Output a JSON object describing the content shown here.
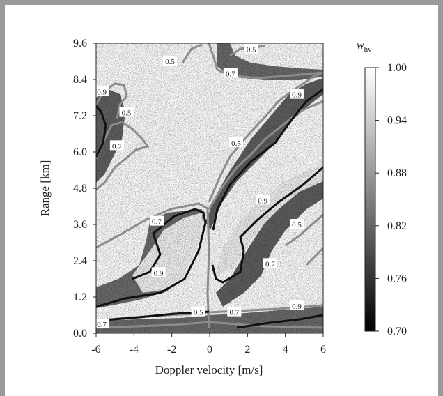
{
  "chart_data": {
    "type": "heatmap",
    "xlabel": "Doppler velocity [m/s]",
    "ylabel": "Range  [km]",
    "xlim": [
      -6,
      6
    ],
    "ylim": [
      0,
      9.6
    ],
    "x_ticks": [
      "-6",
      "-4",
      "-2",
      "0",
      "2",
      "4",
      "6"
    ],
    "y_ticks": [
      "0.0",
      "1.2",
      "2.4",
      "3.6",
      "4.8",
      "6.0",
      "7.2",
      "8.4",
      "9.6"
    ],
    "colorbar": {
      "label": "w",
      "label_subscript": "hv",
      "range": [
        0.7,
        1.0
      ],
      "ticks": [
        "1.00",
        "0.94",
        "0.88",
        "0.82",
        "0.76",
        "0.70"
      ],
      "colormap": "black-to-white"
    },
    "contours": [
      {
        "level": 0.5,
        "color": "#8c8c8c"
      },
      {
        "level": 0.7,
        "color": "#8c8c8c"
      },
      {
        "level": 0.9,
        "color": "#111111"
      }
    ],
    "contour_labels": [
      {
        "text": "0.5",
        "x": -2.1,
        "y": 9.0
      },
      {
        "text": "0.5",
        "x": 2.2,
        "y": 9.4
      },
      {
        "text": "0.7",
        "x": 1.1,
        "y": 8.6
      },
      {
        "text": "0.9",
        "x": -5.7,
        "y": 8.0
      },
      {
        "text": "0.5",
        "x": -4.4,
        "y": 7.3
      },
      {
        "text": "0.9",
        "x": 4.6,
        "y": 7.9
      },
      {
        "text": "0.7",
        "x": -4.9,
        "y": 6.2
      },
      {
        "text": "0.5",
        "x": 1.4,
        "y": 6.3
      },
      {
        "text": "0.7",
        "x": -2.8,
        "y": 3.7
      },
      {
        "text": "0.9",
        "x": 2.8,
        "y": 4.4
      },
      {
        "text": "0.5",
        "x": 4.6,
        "y": 3.6
      },
      {
        "text": "0.9",
        "x": -2.7,
        "y": 2.0
      },
      {
        "text": "0.7",
        "x": 3.2,
        "y": 2.3
      },
      {
        "text": "0.5",
        "x": -0.6,
        "y": 0.7
      },
      {
        "text": "0.7",
        "x": 1.3,
        "y": 0.7
      },
      {
        "text": "0.9",
        "x": 4.6,
        "y": 0.9
      },
      {
        "text": "0.7",
        "x": -5.7,
        "y": 0.3
      }
    ]
  }
}
